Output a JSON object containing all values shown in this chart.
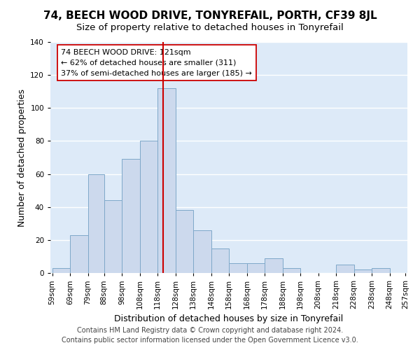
{
  "title": "74, BEECH WOOD DRIVE, TONYREFAIL, PORTH, CF39 8JL",
  "subtitle": "Size of property relative to detached houses in Tonyrefail",
  "xlabel": "Distribution of detached houses by size in Tonyrefail",
  "ylabel": "Number of detached properties",
  "footer_line1": "Contains HM Land Registry data © Crown copyright and database right 2024.",
  "footer_line2": "Contains public sector information licensed under the Open Government Licence v3.0.",
  "bin_edges": [
    59,
    69,
    79,
    88,
    98,
    108,
    118,
    128,
    138,
    148,
    158,
    168,
    178,
    188,
    198,
    208,
    218,
    228,
    238,
    248,
    257
  ],
  "bar_heights": [
    3,
    23,
    60,
    44,
    69,
    80,
    112,
    38,
    26,
    15,
    6,
    6,
    9,
    3,
    0,
    0,
    5,
    2,
    3,
    0
  ],
  "bar_color": "#ccd9ed",
  "bar_edge_color": "#7ea8c9",
  "background_color": "#ddeaf8",
  "grid_color": "#ffffff",
  "property_value": 121,
  "property_line_color": "#cc0000",
  "annotation_line1": "74 BEECH WOOD DRIVE: 121sqm",
  "annotation_line2": "← 62% of detached houses are smaller (311)",
  "annotation_line3": "37% of semi-detached houses are larger (185) →",
  "annotation_box_facecolor": "#ffffff",
  "annotation_box_edgecolor": "#cc0000",
  "ylim": [
    0,
    140
  ],
  "yticks": [
    0,
    20,
    40,
    60,
    80,
    100,
    120,
    140
  ],
  "title_fontsize": 11,
  "subtitle_fontsize": 9.5,
  "axis_label_fontsize": 9,
  "tick_fontsize": 7.5,
  "annotation_fontsize": 8,
  "footer_fontsize": 7
}
